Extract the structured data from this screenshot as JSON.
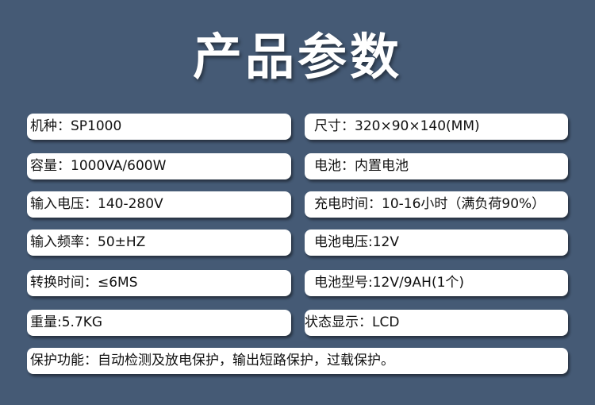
{
  "title": "产品参数",
  "specs_left": [
    "机种：SP1000",
    "容量：1000VA/600W",
    "输入电压：140-280V",
    "输入频率：50±HZ",
    "转换时间：≤6MS",
    "重量:5.7KG"
  ],
  "specs_right": [
    "尺寸：320×90×140(MM)",
    "电池：内置电池",
    "充电时间：10-16小时（满负荷90%）",
    "电池电压:12V",
    "电池型号:12V/9AH(1个)",
    "状态显示：LCD"
  ],
  "protection": "保护功能：自动检测及放电保护，输出短路保护，过载保护。"
}
